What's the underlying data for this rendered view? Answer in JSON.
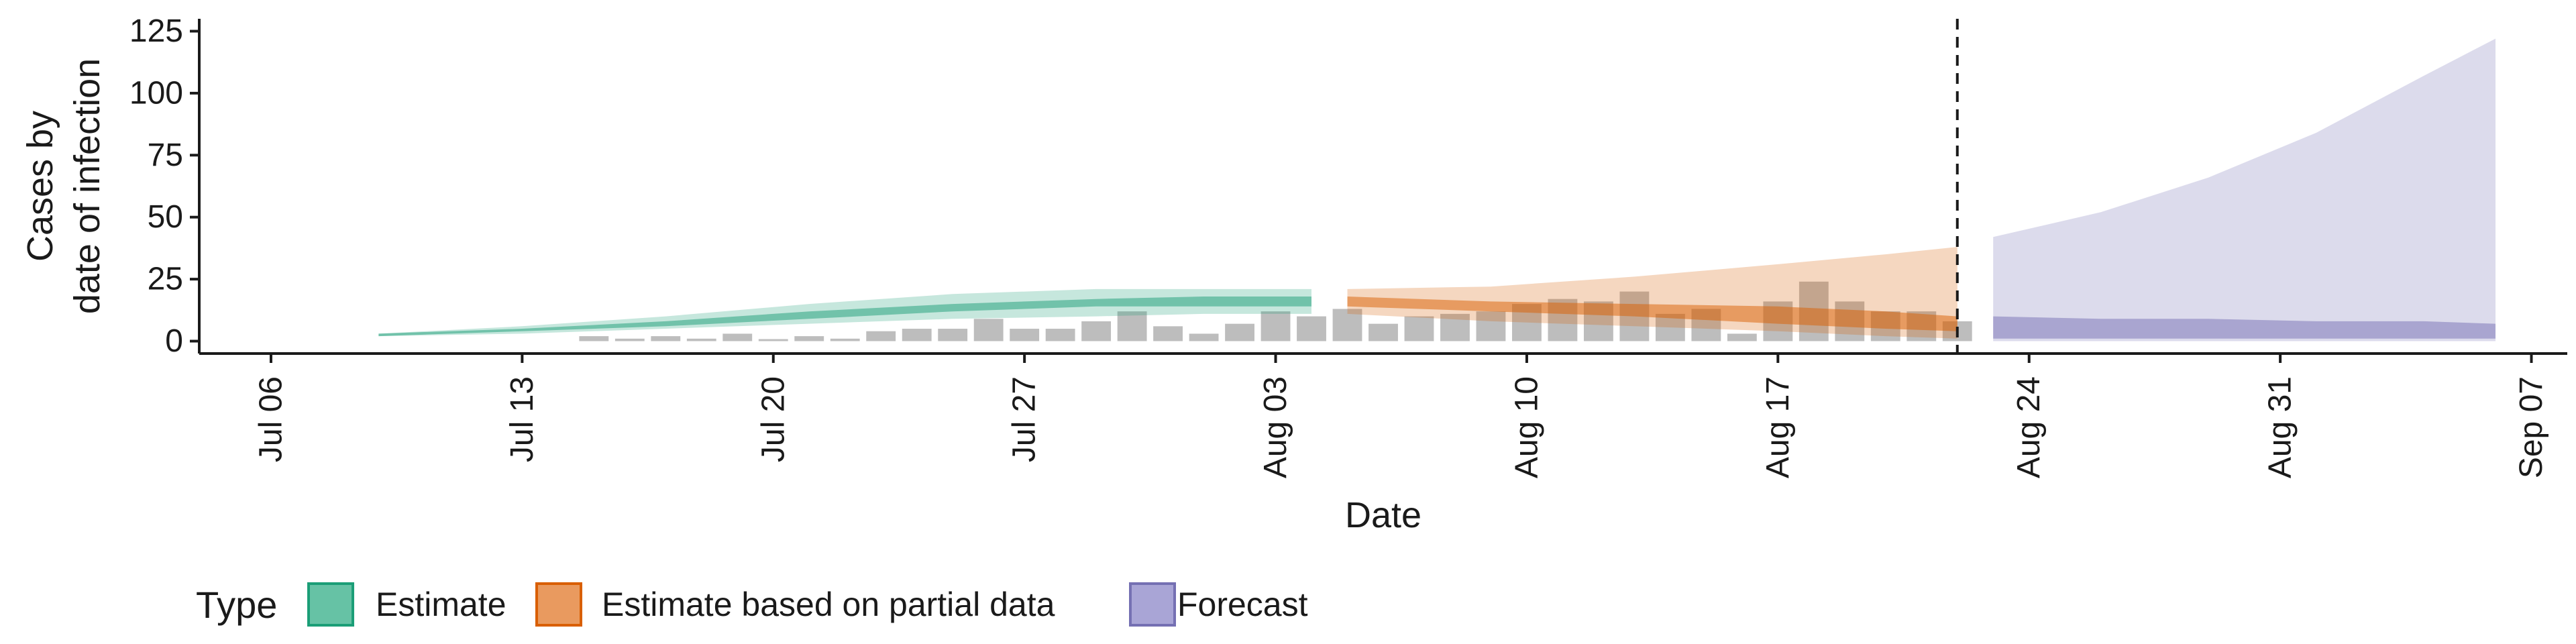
{
  "chart_data": {
    "type": "area",
    "xlabel": "Date",
    "ylabel_lines": [
      "Cases by",
      "date of infection"
    ],
    "x_domain": [
      "2020-07-04",
      "2020-09-08"
    ],
    "ylim": [
      -5,
      130
    ],
    "x_ticks": [
      {
        "date": "2020-07-06",
        "label": "Jul 06"
      },
      {
        "date": "2020-07-13",
        "label": "Jul 13"
      },
      {
        "date": "2020-07-20",
        "label": "Jul 20"
      },
      {
        "date": "2020-07-27",
        "label": "Jul 27"
      },
      {
        "date": "2020-08-03",
        "label": "Aug 03"
      },
      {
        "date": "2020-08-10",
        "label": "Aug 10"
      },
      {
        "date": "2020-08-17",
        "label": "Aug 17"
      },
      {
        "date": "2020-08-24",
        "label": "Aug 24"
      },
      {
        "date": "2020-08-31",
        "label": "Aug 31"
      },
      {
        "date": "2020-09-07",
        "label": "Sep 07"
      }
    ],
    "y_ticks": [
      0,
      25,
      50,
      75,
      100,
      125
    ],
    "grid": false,
    "legend": {
      "title": "Type",
      "position": "bottom-left",
      "entries": [
        {
          "label": "Estimate",
          "fill": "#66c2a5",
          "stroke": "#1b9e77"
        },
        {
          "label": "Estimate based on partial data",
          "fill": "#e99a5f",
          "stroke": "#d95f02"
        },
        {
          "label": "Forecast",
          "fill": "#a9a5d6",
          "stroke": "#7570b3"
        }
      ]
    },
    "vline_date": "2020-08-22",
    "reported_cases": {
      "color": "#bdbdbd",
      "x": [
        "2020-07-15",
        "2020-07-16",
        "2020-07-17",
        "2020-07-18",
        "2020-07-19",
        "2020-07-20",
        "2020-07-21",
        "2020-07-22",
        "2020-07-23",
        "2020-07-24",
        "2020-07-25",
        "2020-07-26",
        "2020-07-27",
        "2020-07-28",
        "2020-07-29",
        "2020-07-30",
        "2020-07-31",
        "2020-08-01",
        "2020-08-02",
        "2020-08-03",
        "2020-08-04",
        "2020-08-05",
        "2020-08-06",
        "2020-08-07",
        "2020-08-08",
        "2020-08-09",
        "2020-08-10",
        "2020-08-11",
        "2020-08-12",
        "2020-08-13",
        "2020-08-14",
        "2020-08-15",
        "2020-08-16",
        "2020-08-17",
        "2020-08-18",
        "2020-08-19",
        "2020-08-20",
        "2020-08-21",
        "2020-08-22"
      ],
      "y": [
        2,
        1,
        2,
        1,
        3,
        0,
        2,
        1,
        4,
        5,
        5,
        9,
        5,
        5,
        8,
        12,
        6,
        3,
        7,
        12,
        10,
        13,
        7,
        10,
        11,
        12,
        15,
        17,
        16,
        20,
        11,
        13,
        3,
        16,
        24,
        16,
        12,
        12,
        8
      ]
    },
    "series": [
      {
        "name": "Estimate",
        "fill": "#1b9e77",
        "x": [
          "2020-07-09",
          "2020-07-13",
          "2020-07-17",
          "2020-07-21",
          "2020-07-25",
          "2020-07-29",
          "2020-08-01",
          "2020-08-04"
        ],
        "outer_lower": [
          2,
          3,
          5,
          7,
          9,
          10,
          11,
          11
        ],
        "outer_upper": [
          3,
          6,
          10,
          15,
          19,
          21,
          21,
          21
        ],
        "inner_lower": [
          2,
          4,
          6,
          9,
          12,
          14,
          14,
          14
        ],
        "inner_upper": [
          3,
          5,
          8,
          12,
          15,
          17,
          18,
          18
        ]
      },
      {
        "name": "Estimate based on partial data",
        "fill": "#d95f02",
        "x": [
          "2020-08-05",
          "2020-08-09",
          "2020-08-13",
          "2020-08-17",
          "2020-08-20",
          "2020-08-22"
        ],
        "outer_lower": [
          11,
          8,
          6,
          4,
          2,
          1
        ],
        "outer_upper": [
          21,
          22,
          26,
          31,
          35,
          38
        ],
        "inner_lower": [
          14,
          12,
          10,
          7,
          5,
          4
        ],
        "inner_upper": [
          18,
          16,
          15,
          14,
          12,
          10
        ]
      },
      {
        "name": "Forecast",
        "fill": "#7570b3",
        "x": [
          "2020-08-23",
          "2020-08-26",
          "2020-08-29",
          "2020-09-01",
          "2020-09-04",
          "2020-09-06"
        ],
        "outer_lower": [
          0,
          0,
          0,
          0,
          0,
          0
        ],
        "outer_upper": [
          42,
          52,
          66,
          84,
          107,
          122
        ],
        "inner_lower": [
          1,
          1,
          1,
          1,
          1,
          1
        ],
        "inner_upper": [
          10,
          9,
          9,
          8,
          8,
          7
        ]
      }
    ]
  }
}
